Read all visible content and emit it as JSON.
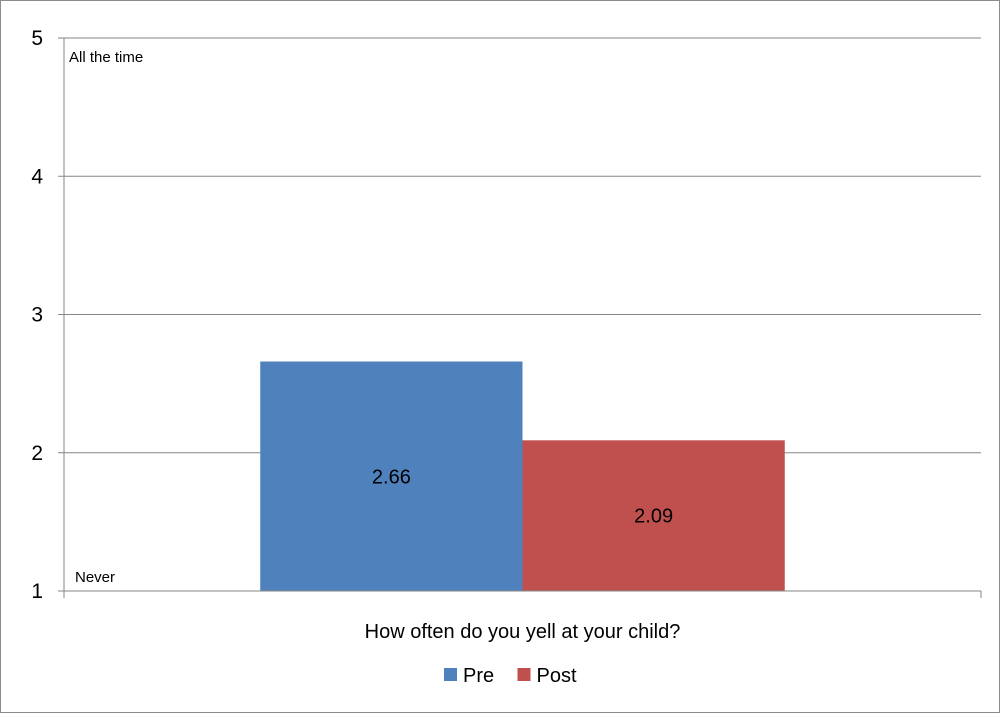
{
  "chart_data": {
    "type": "bar",
    "categories": [
      "How often do you yell at your child?"
    ],
    "series": [
      {
        "name": "Pre",
        "values": [
          2.66
        ],
        "color": "#4f81bd"
      },
      {
        "name": "Post",
        "values": [
          2.09
        ],
        "color": "#c0504d"
      }
    ],
    "ylim": [
      1,
      5
    ],
    "yticks": [
      1,
      2,
      3,
      4,
      5
    ],
    "annotations": {
      "top": "All the time",
      "bottom": "Never"
    },
    "grid": true,
    "legend_position": "bottom"
  }
}
